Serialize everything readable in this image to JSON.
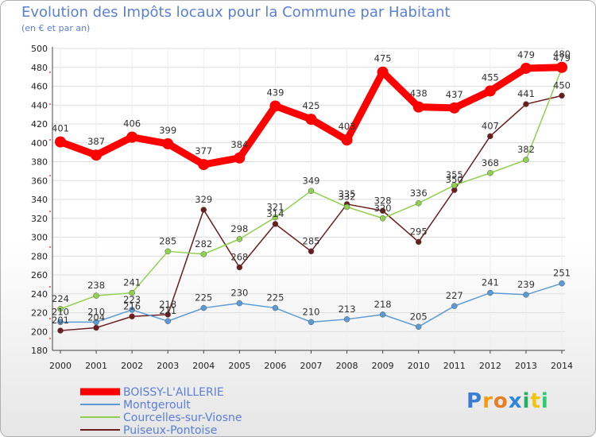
{
  "chart_data": {
    "type": "line",
    "title": "Evolution des Impôts locaux pour la Commune par Habitant",
    "subtitle": "(en € et par an)",
    "x": [
      "2000",
      "2001",
      "2002",
      "2003",
      "2004",
      "2005",
      "2006",
      "2007",
      "2008",
      "2009",
      "2010",
      "2011",
      "2012",
      "2013",
      "2014"
    ],
    "ylim": [
      180,
      500
    ],
    "yticks": [
      180,
      200,
      220,
      240,
      260,
      280,
      300,
      320,
      340,
      360,
      380,
      400,
      420,
      440,
      460,
      480,
      500
    ],
    "series": [
      {
        "name": "BOISSY-L'AILLERIE",
        "color": "#ff0000",
        "values": [
          401,
          387,
          406,
          399,
          377,
          384,
          439,
          425,
          403,
          475,
          438,
          437,
          455,
          479,
          480
        ],
        "labels": [
          "401",
          "387",
          "406",
          "399",
          "377",
          "384",
          "439",
          "425",
          "403",
          "475",
          "438",
          "437",
          "455",
          "479",
          "480"
        ]
      },
      {
        "name": "Montgeroult",
        "color": "#5b9bd5",
        "values": [
          210,
          210,
          223,
          211,
          225,
          230,
          225,
          210,
          213,
          218,
          205,
          227,
          241,
          239,
          251
        ],
        "labels": [
          "210",
          "210",
          "223",
          "211",
          "225",
          "230",
          "225",
          "210",
          "213",
          "218",
          "205",
          "227",
          "241",
          "239",
          "251"
        ]
      },
      {
        "name": "Courcelles-sur-Viosne",
        "color": "#8fd14f",
        "values": [
          224,
          238,
          241,
          285,
          282,
          298,
          321,
          349,
          332,
          320,
          336,
          355,
          368,
          382,
          479
        ],
        "labels": [
          "224",
          "238",
          "241",
          "285",
          "282",
          "298",
          "321",
          "349",
          "332",
          "320",
          "336",
          "355",
          "368",
          "382",
          "479"
        ]
      },
      {
        "name": "Puiseux-Pontoise",
        "color": "#6b1d1d",
        "values": [
          201,
          204,
          216,
          218,
          329,
          268,
          314,
          285,
          335,
          328,
          295,
          350,
          407,
          441,
          450
        ],
        "labels": [
          "201",
          "204",
          "216",
          "218",
          "329",
          "268",
          "314",
          "285",
          "335",
          "328",
          "295",
          "350",
          "407",
          "441",
          "450"
        ]
      }
    ]
  },
  "logo": {
    "text": "Proxiti",
    "letters": [
      "P",
      "r",
      "o",
      "x",
      "i",
      "t",
      "i"
    ],
    "colors": [
      "#3a7bd5",
      "#f39c12",
      "#e67e22",
      "#2e86de",
      "#27ae60",
      "#f1c40f",
      "#2ecc71"
    ]
  }
}
